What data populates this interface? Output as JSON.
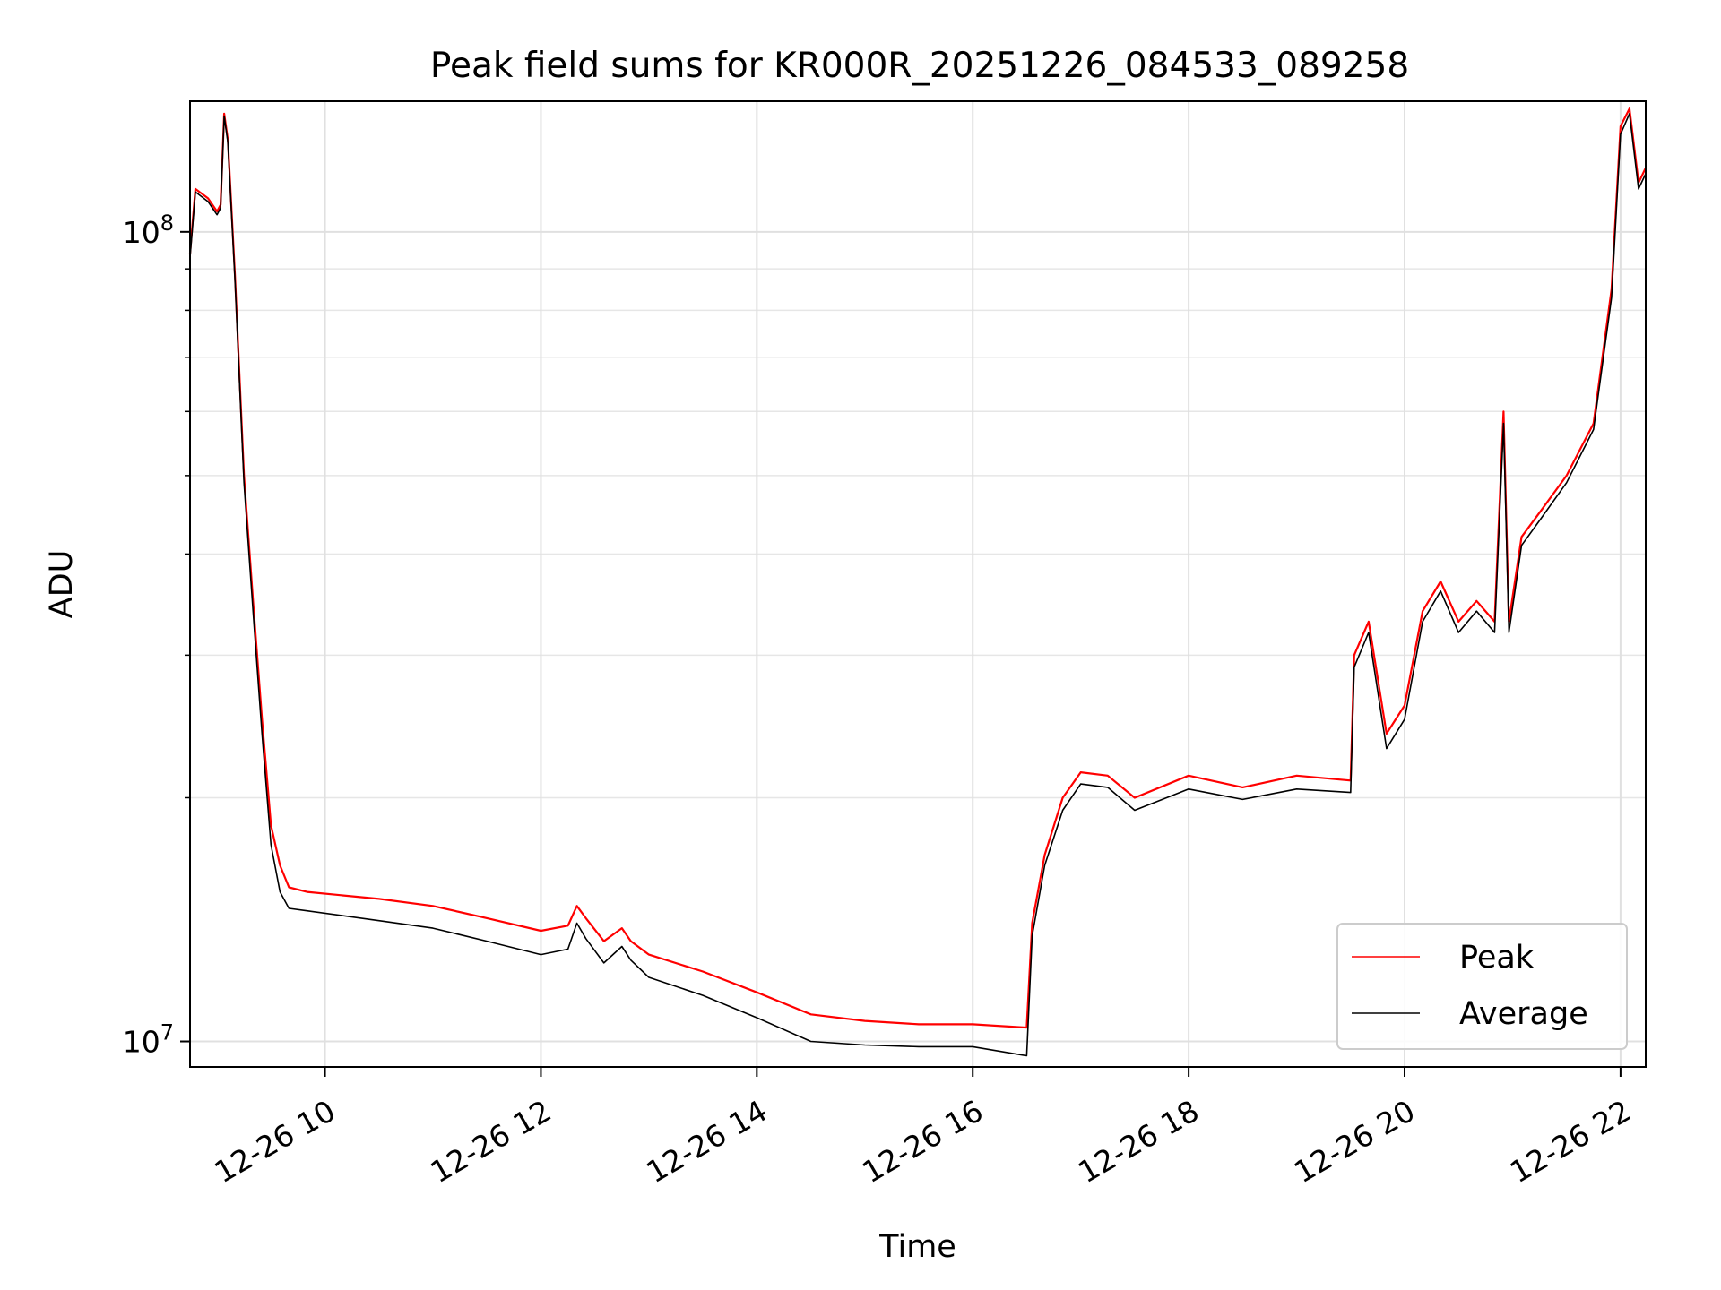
{
  "chart_data": {
    "type": "line",
    "title": "Peak field sums for KR000R_20251226_084533_089258",
    "xlabel": "Time",
    "ylabel": "ADU",
    "y_scale": "log",
    "ylim": [
      9300000,
      145000000
    ],
    "xlim": [
      "2025-12-26T08:45",
      "2025-12-26T22:14"
    ],
    "grid": true,
    "legend_position": "lower-right",
    "x_ticks": [
      {
        "value": "2025-12-26T10:00",
        "label": "12-26 10"
      },
      {
        "value": "2025-12-26T12:00",
        "label": "12-26 12"
      },
      {
        "value": "2025-12-26T14:00",
        "label": "12-26 14"
      },
      {
        "value": "2025-12-26T16:00",
        "label": "12-26 16"
      },
      {
        "value": "2025-12-26T18:00",
        "label": "12-26 18"
      },
      {
        "value": "2025-12-26T20:00",
        "label": "12-26 20"
      },
      {
        "value": "2025-12-26T22:00",
        "label": "12-26 22"
      }
    ],
    "y_ticks": [
      {
        "value": 10000000,
        "base": "10",
        "exp": "7"
      },
      {
        "value": 100000000,
        "base": "10",
        "exp": "8"
      }
    ],
    "series": [
      {
        "name": "Peak",
        "color": "#ff0000",
        "points": [
          [
            "2025-12-26T08:45",
            94000000
          ],
          [
            "2025-12-26T08:48",
            113000000
          ],
          [
            "2025-12-26T08:55",
            110000000
          ],
          [
            "2025-12-26T09:00",
            106000000
          ],
          [
            "2025-12-26T09:02",
            108000000
          ],
          [
            "2025-12-26T09:04",
            140000000
          ],
          [
            "2025-12-26T09:06",
            130000000
          ],
          [
            "2025-12-26T09:10",
            88000000
          ],
          [
            "2025-12-26T09:15",
            50000000
          ],
          [
            "2025-12-26T09:20",
            35000000
          ],
          [
            "2025-12-26T09:25",
            25000000
          ],
          [
            "2025-12-26T09:30",
            18500000
          ],
          [
            "2025-12-26T09:35",
            16500000
          ],
          [
            "2025-12-26T09:40",
            15500000
          ],
          [
            "2025-12-26T09:50",
            15300000
          ],
          [
            "2025-12-26T10:30",
            15000000
          ],
          [
            "2025-12-26T11:00",
            14700000
          ],
          [
            "2025-12-26T11:30",
            14200000
          ],
          [
            "2025-12-26T12:00",
            13700000
          ],
          [
            "2025-12-26T12:15",
            13900000
          ],
          [
            "2025-12-26T12:20",
            14700000
          ],
          [
            "2025-12-26T12:25",
            14200000
          ],
          [
            "2025-12-26T12:35",
            13300000
          ],
          [
            "2025-12-26T12:45",
            13800000
          ],
          [
            "2025-12-26T12:50",
            13300000
          ],
          [
            "2025-12-26T13:00",
            12800000
          ],
          [
            "2025-12-26T13:30",
            12200000
          ],
          [
            "2025-12-26T14:00",
            11500000
          ],
          [
            "2025-12-26T14:30",
            10800000
          ],
          [
            "2025-12-26T15:00",
            10600000
          ],
          [
            "2025-12-26T15:30",
            10500000
          ],
          [
            "2025-12-26T16:00",
            10500000
          ],
          [
            "2025-12-26T16:30",
            10400000
          ],
          [
            "2025-12-26T16:33",
            14000000
          ],
          [
            "2025-12-26T16:40",
            17000000
          ],
          [
            "2025-12-26T16:50",
            20000000
          ],
          [
            "2025-12-26T17:00",
            21500000
          ],
          [
            "2025-12-26T17:15",
            21300000
          ],
          [
            "2025-12-26T17:30",
            20000000
          ],
          [
            "2025-12-26T18:00",
            21300000
          ],
          [
            "2025-12-26T18:30",
            20600000
          ],
          [
            "2025-12-26T19:00",
            21300000
          ],
          [
            "2025-12-26T19:30",
            21000000
          ],
          [
            "2025-12-26T19:32",
            30000000
          ],
          [
            "2025-12-26T19:40",
            33000000
          ],
          [
            "2025-12-26T19:50",
            24000000
          ],
          [
            "2025-12-26T20:00",
            26000000
          ],
          [
            "2025-12-26T20:10",
            34000000
          ],
          [
            "2025-12-26T20:20",
            37000000
          ],
          [
            "2025-12-26T20:30",
            33000000
          ],
          [
            "2025-12-26T20:40",
            35000000
          ],
          [
            "2025-12-26T20:50",
            33000000
          ],
          [
            "2025-12-26T20:55",
            60000000
          ],
          [
            "2025-12-26T20:58",
            33000000
          ],
          [
            "2025-12-26T21:05",
            42000000
          ],
          [
            "2025-12-26T21:15",
            45000000
          ],
          [
            "2025-12-26T21:30",
            50000000
          ],
          [
            "2025-12-26T21:45",
            58000000
          ],
          [
            "2025-12-26T21:55",
            85000000
          ],
          [
            "2025-12-26T22:00",
            135000000
          ],
          [
            "2025-12-26T22:05",
            142000000
          ],
          [
            "2025-12-26T22:10",
            115000000
          ],
          [
            "2025-12-26T22:14",
            120000000
          ]
        ]
      },
      {
        "name": "Average",
        "color": "#000000",
        "points": [
          [
            "2025-12-26T08:45",
            93000000
          ],
          [
            "2025-12-26T08:48",
            112000000
          ],
          [
            "2025-12-26T08:55",
            109000000
          ],
          [
            "2025-12-26T09:00",
            105000000
          ],
          [
            "2025-12-26T09:02",
            107000000
          ],
          [
            "2025-12-26T09:04",
            139000000
          ],
          [
            "2025-12-26T09:06",
            129000000
          ],
          [
            "2025-12-26T09:10",
            87000000
          ],
          [
            "2025-12-26T09:15",
            49000000
          ],
          [
            "2025-12-26T09:20",
            34000000
          ],
          [
            "2025-12-26T09:25",
            24000000
          ],
          [
            "2025-12-26T09:30",
            17500000
          ],
          [
            "2025-12-26T09:35",
            15300000
          ],
          [
            "2025-12-26T09:40",
            14600000
          ],
          [
            "2025-12-26T09:50",
            14500000
          ],
          [
            "2025-12-26T10:30",
            14100000
          ],
          [
            "2025-12-26T11:00",
            13800000
          ],
          [
            "2025-12-26T11:30",
            13300000
          ],
          [
            "2025-12-26T12:00",
            12800000
          ],
          [
            "2025-12-26T12:15",
            13000000
          ],
          [
            "2025-12-26T12:20",
            14000000
          ],
          [
            "2025-12-26T12:25",
            13400000
          ],
          [
            "2025-12-26T12:35",
            12500000
          ],
          [
            "2025-12-26T12:45",
            13100000
          ],
          [
            "2025-12-26T12:50",
            12600000
          ],
          [
            "2025-12-26T13:00",
            12000000
          ],
          [
            "2025-12-26T13:30",
            11400000
          ],
          [
            "2025-12-26T14:00",
            10700000
          ],
          [
            "2025-12-26T14:30",
            10000000
          ],
          [
            "2025-12-26T15:00",
            9900000
          ],
          [
            "2025-12-26T15:30",
            9850000
          ],
          [
            "2025-12-26T16:00",
            9850000
          ],
          [
            "2025-12-26T16:30",
            9600000
          ],
          [
            "2025-12-26T16:33",
            13500000
          ],
          [
            "2025-12-26T16:40",
            16500000
          ],
          [
            "2025-12-26T16:50",
            19300000
          ],
          [
            "2025-12-26T17:00",
            20800000
          ],
          [
            "2025-12-26T17:15",
            20600000
          ],
          [
            "2025-12-26T17:30",
            19300000
          ],
          [
            "2025-12-26T18:00",
            20500000
          ],
          [
            "2025-12-26T18:30",
            19900000
          ],
          [
            "2025-12-26T19:00",
            20500000
          ],
          [
            "2025-12-26T19:30",
            20300000
          ],
          [
            "2025-12-26T19:32",
            29000000
          ],
          [
            "2025-12-26T19:40",
            32000000
          ],
          [
            "2025-12-26T19:50",
            23000000
          ],
          [
            "2025-12-26T20:00",
            25000000
          ],
          [
            "2025-12-26T20:10",
            33000000
          ],
          [
            "2025-12-26T20:20",
            36000000
          ],
          [
            "2025-12-26T20:30",
            32000000
          ],
          [
            "2025-12-26T20:40",
            34000000
          ],
          [
            "2025-12-26T20:50",
            32000000
          ],
          [
            "2025-12-26T20:55",
            58000000
          ],
          [
            "2025-12-26T20:58",
            32000000
          ],
          [
            "2025-12-26T21:05",
            41000000
          ],
          [
            "2025-12-26T21:15",
            44000000
          ],
          [
            "2025-12-26T21:30",
            49000000
          ],
          [
            "2025-12-26T21:45",
            57000000
          ],
          [
            "2025-12-26T21:55",
            83000000
          ],
          [
            "2025-12-26T22:00",
            132000000
          ],
          [
            "2025-12-26T22:05",
            140000000
          ],
          [
            "2025-12-26T22:10",
            113000000
          ],
          [
            "2025-12-26T22:14",
            118000000
          ]
        ]
      }
    ]
  }
}
